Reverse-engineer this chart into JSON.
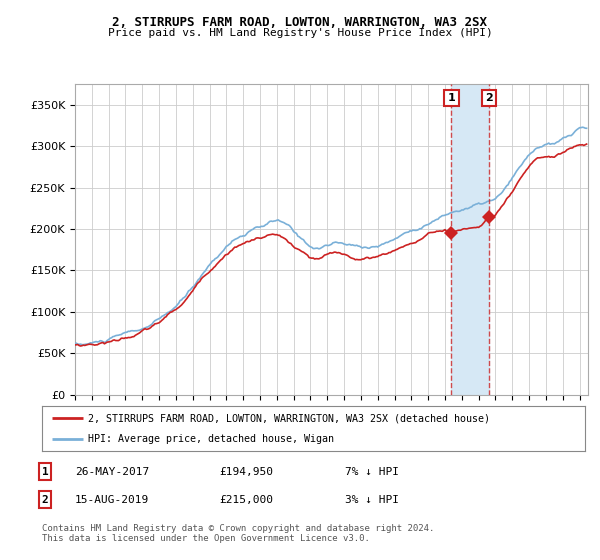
{
  "title_line1": "2, STIRRUPS FARM ROAD, LOWTON, WARRINGTON, WA3 2SX",
  "title_line2": "Price paid vs. HM Land Registry's House Price Index (HPI)",
  "bg_color": "#ffffff",
  "plot_bg_color": "#ffffff",
  "grid_color": "#cccccc",
  "hpi_color": "#7ab0d8",
  "price_color": "#cc2222",
  "legend_label1": "2, STIRRUPS FARM ROAD, LOWTON, WARRINGTON, WA3 2SX (detached house)",
  "legend_label2": "HPI: Average price, detached house, Wigan",
  "footer": "Contains HM Land Registry data © Crown copyright and database right 2024.\nThis data is licensed under the Open Government Licence v3.0.",
  "ylim": [
    0,
    375000
  ],
  "yticks": [
    0,
    50000,
    100000,
    150000,
    200000,
    250000,
    300000,
    350000
  ],
  "ytick_labels": [
    "£0",
    "£50K",
    "£100K",
    "£150K",
    "£200K",
    "£250K",
    "£300K",
    "£350K"
  ],
  "sale1_x": 2017.38,
  "sale1_y": 194950,
  "sale2_x": 2019.62,
  "sale2_y": 215000,
  "sale1_label": "1",
  "sale1_date": "26-MAY-2017",
  "sale1_price": "£194,950",
  "sale1_hpi": "7% ↓ HPI",
  "sale2_label": "2",
  "sale2_date": "15-AUG-2019",
  "sale2_price": "£215,000",
  "sale2_hpi": "3% ↓ HPI",
  "shade_color": "#d6e8f5",
  "xmin": 1995.0,
  "xmax": 2025.5
}
